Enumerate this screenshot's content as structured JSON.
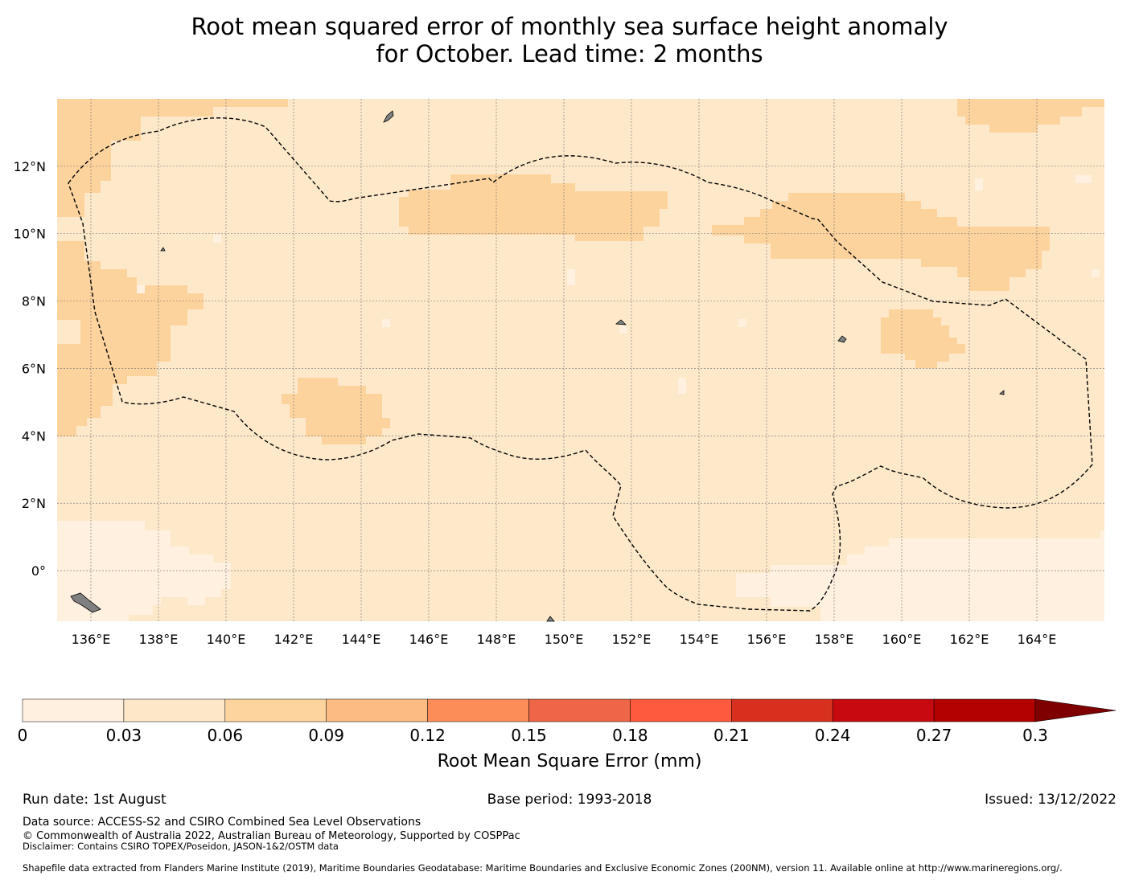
{
  "title_line1": "Root mean squared error of monthly sea surface height anomaly",
  "title_line2": "for October. Lead time: 2 months",
  "map": {
    "lon_range": [
      135,
      166
    ],
    "lat_range": [
      -1.5,
      14
    ],
    "lon_ticks": [
      "136°E",
      "138°E",
      "140°E",
      "142°E",
      "144°E",
      "146°E",
      "148°E",
      "150°E",
      "152°E",
      "154°E",
      "156°E",
      "158°E",
      "160°E",
      "162°E",
      "164°E"
    ],
    "lat_ticks": [
      "12°N",
      "10°N",
      "8°N",
      "6°N",
      "4°N",
      "2°N",
      "0°"
    ],
    "grid": true,
    "boundary": "dashed EEZ outline (black)"
  },
  "colorbar": {
    "label": "Root Mean Square Error (mm)",
    "ticks": [
      "0",
      "0.03",
      "0.06",
      "0.09",
      "0.12",
      "0.15",
      "0.18",
      "0.21",
      "0.24",
      "0.27",
      "0.3"
    ],
    "colors": [
      "#fff0df",
      "#fee6c8",
      "#fdd49e",
      "#fdbb84",
      "#fc8d59",
      "#ef6548",
      "#fd5a3e",
      "#d7301f",
      "#c70a10",
      "#b30000",
      "#7f0000"
    ],
    "extend": "max"
  },
  "footer": {
    "run_date": "Run date: 1st August",
    "base_period": "Base period: 1993-2018",
    "issued": "Issued: 13/12/2022",
    "data_source": "Data source: ACCESS-S2 and CSIRO Combined Sea Level Observations",
    "copyright": "© Commonwealth of Australia 2022, Australian Bureau of Meteorology, Supported by COSPPac",
    "disclaimer": "Disclaimer: Contains CSIRO TOPEX/Poseidon, JASON-1&2/OSTM data",
    "shapefile": "Shapefile data extracted from Flanders Marine Institute (2019), Maritime Boundaries Geodatabase: Maritime Boundaries and Exclusive Economic Zones (200NM), version 11. Available online at http://www.marineregions.org/."
  }
}
